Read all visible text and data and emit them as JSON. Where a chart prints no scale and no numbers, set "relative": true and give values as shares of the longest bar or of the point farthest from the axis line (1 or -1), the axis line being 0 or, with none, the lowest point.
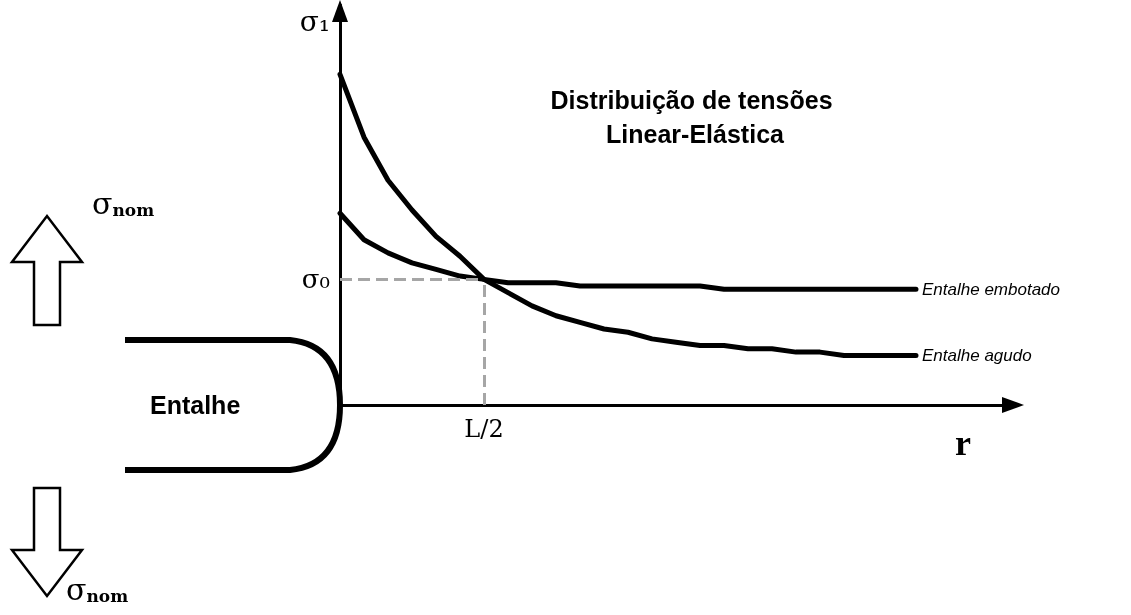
{
  "chart_data": {
    "type": "line",
    "title": "Distribuição de tensões Linear-Elástica",
    "ylabel": "σ₁",
    "xlabel": "r",
    "relative": true,
    "grid": false,
    "legend": false,
    "marker": "none",
    "line_style": "solid",
    "categories": [
      null,
      null,
      null,
      null,
      null,
      null,
      null,
      null,
      null,
      null,
      null,
      null,
      null,
      null,
      null,
      null,
      null,
      null,
      null,
      null,
      null,
      null,
      null,
      null,
      null,
      null,
      null,
      null,
      null
    ],
    "series": [
      {
        "name": "Entalhe embotado",
        "color": "#000000",
        "values": [
          0.58,
          0.5,
          0.46,
          0.43,
          0.41,
          0.39,
          0.38,
          0.37,
          0.37,
          0.37,
          0.36,
          0.36,
          0.36,
          0.36,
          0.36,
          0.36,
          0.35,
          0.35,
          0.35,
          0.35,
          0.35,
          0.35,
          0.35,
          0.35,
          0.35,
          null,
          null,
          null,
          null
        ]
      },
      {
        "name": "Entalhe agudo",
        "color": "#000000",
        "values": [
          1.0,
          0.81,
          0.68,
          0.59,
          0.51,
          0.45,
          0.38,
          0.34,
          0.3,
          0.27,
          0.25,
          0.23,
          0.22,
          0.2,
          0.19,
          0.18,
          0.18,
          0.17,
          0.17,
          0.16,
          0.16,
          0.15,
          0.15,
          0.15,
          0.15,
          null,
          null,
          null,
          null
        ]
      }
    ],
    "ref_lines": [
      {
        "axis": "y",
        "value": 0.38,
        "label": "σ₀",
        "color": "#a6a6a6",
        "line_style": "dashed"
      }
    ],
    "annotations": [
      "Entalhe",
      "σ$_{nom}$",
      "σ$_{nom}$",
      "L/2"
    ]
  }
}
